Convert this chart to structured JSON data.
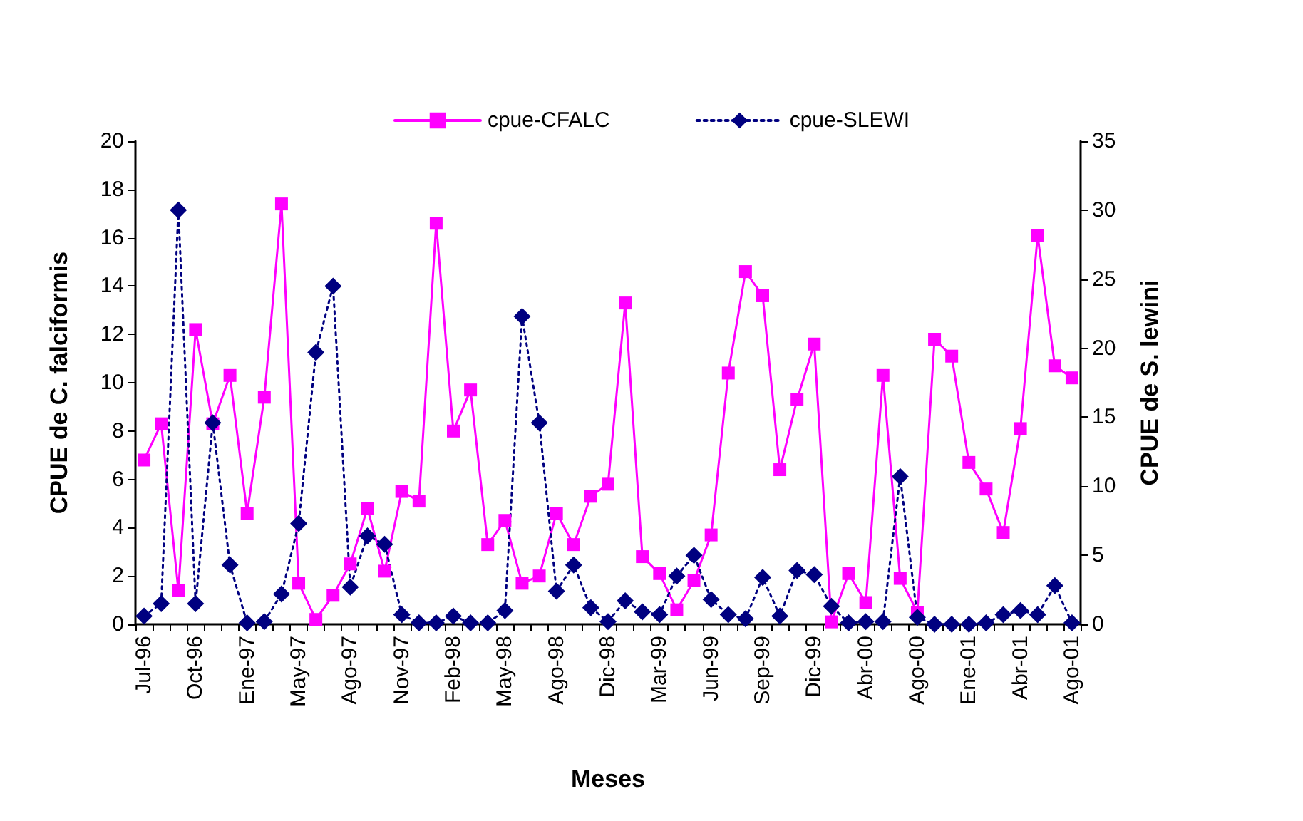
{
  "chart_data": {
    "type": "line",
    "xlabel": "Meses",
    "ylabel": "CPUE de C. falciformis",
    "y2label": "CPUE de S. lewini",
    "categories": [
      "Jul-96",
      null,
      null,
      "Oct-96",
      null,
      null,
      "Ene-97",
      null,
      null,
      "May-97",
      null,
      null,
      "Ago-97",
      null,
      null,
      "Nov-97",
      null,
      null,
      "Feb-98",
      null,
      null,
      "May-98",
      null,
      null,
      "Ago-98",
      null,
      null,
      "Dic-98",
      null,
      null,
      "Mar-99",
      null,
      null,
      "Jun-99",
      null,
      null,
      "Sep-99",
      null,
      null,
      "Dic-99",
      null,
      null,
      "Abr-00",
      null,
      null,
      "Ago-00",
      null,
      null,
      "Ene-01",
      null,
      null,
      "Abr-01",
      null,
      null,
      "Ago-01"
    ],
    "series": [
      {
        "name": "cpue-CFALC",
        "color": "#ff00ff",
        "marker": "square",
        "line_style": "solid",
        "values": [
          6.8,
          8.3,
          1.4,
          12.2,
          8.3,
          10.3,
          4.6,
          9.4,
          17.4,
          1.7,
          0.2,
          1.2,
          2.5,
          4.8,
          2.2,
          5.5,
          5.1,
          16.6,
          8.0,
          9.7,
          3.3,
          4.3,
          1.7,
          2.0,
          4.6,
          3.3,
          5.3,
          5.8,
          13.3,
          2.8,
          2.1,
          0.6,
          1.8,
          3.7,
          10.4,
          14.6,
          13.6,
          6.4,
          9.3,
          11.6,
          0.1,
          2.1,
          0.9,
          10.3,
          1.9,
          0.5,
          11.8,
          11.1,
          6.7,
          5.6,
          3.8,
          8.1,
          16.1,
          10.7,
          10.2
        ]
      },
      {
        "name": "cpue-SLEWI",
        "color": "#000080",
        "marker": "diamond",
        "line_style": "dotted",
        "axis": "y2",
        "values": [
          0.6,
          1.5,
          30.0,
          1.5,
          14.6,
          4.3,
          0.1,
          0.2,
          2.2,
          7.3,
          19.7,
          24.5,
          2.7,
          6.4,
          5.8,
          0.7,
          0.1,
          0.1,
          0.6,
          0.1,
          0.1,
          1.0,
          22.3,
          14.6,
          2.4,
          4.3,
          1.2,
          0.2,
          1.7,
          0.9,
          0.7,
          3.5,
          5.0,
          1.8,
          0.7,
          0.4,
          3.4,
          0.6,
          3.9,
          3.6,
          1.3,
          0.1,
          0.2,
          0.2,
          10.7,
          0.5,
          0.0,
          0.0,
          0.0,
          0.1,
          0.7,
          1.0,
          0.7,
          2.8,
          0.1
        ]
      }
    ],
    "ylim": [
      0,
      20
    ],
    "yticks": [
      0,
      2,
      4,
      6,
      8,
      10,
      12,
      14,
      16,
      18,
      20
    ],
    "y2lim": [
      0,
      35
    ],
    "y2ticks": [
      0,
      5,
      10,
      15,
      20,
      25,
      30,
      35
    ],
    "grid": false,
    "legend": "top"
  }
}
